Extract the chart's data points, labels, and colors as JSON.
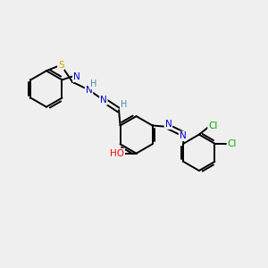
{
  "background_color": "#efefef",
  "bond_color": "#000000",
  "atom_colors": {
    "S": "#ccaa00",
    "N": "#0000cc",
    "O": "#ff0000",
    "Cl": "#00aa00",
    "H": "#4488aa",
    "C": "#000000"
  },
  "bond_width": 1.4,
  "figsize": [
    3.0,
    3.0
  ],
  "dpi": 100
}
